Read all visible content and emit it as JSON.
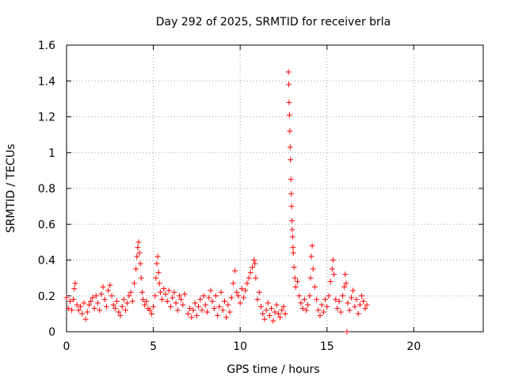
{
  "chart_data": {
    "type": "scatter",
    "title": "Day 292 of 2025, SRMTID for receiver brla",
    "xlabel": "GPS time / hours",
    "ylabel": "SRMTID / TECUs",
    "xlim": [
      0,
      24
    ],
    "ylim": [
      0,
      1.6
    ],
    "xticks": [
      0,
      5,
      10,
      15,
      20
    ],
    "xtick_labels": [
      "0",
      "5",
      "10",
      "15",
      "20"
    ],
    "yticks": [
      0,
      0.2,
      0.4,
      0.6,
      0.8,
      1.0,
      1.2,
      1.4,
      1.6
    ],
    "ytick_labels": [
      "0",
      "0.2",
      "0.4",
      "0.6",
      "0.8",
      "1",
      "1.2",
      "1.4",
      "1.6"
    ],
    "grid": true,
    "marker": "+",
    "series": [
      {
        "name": "SRMTID",
        "color": "#ff0000",
        "points": [
          [
            0.0,
            0.19
          ],
          [
            0.1,
            0.13
          ],
          [
            0.2,
            0.17
          ],
          [
            0.3,
            0.12
          ],
          [
            0.4,
            0.18
          ],
          [
            0.45,
            0.24
          ],
          [
            0.5,
            0.27
          ],
          [
            0.6,
            0.15
          ],
          [
            0.7,
            0.12
          ],
          [
            0.8,
            0.14
          ],
          [
            0.9,
            0.1
          ],
          [
            1.0,
            0.16
          ],
          [
            1.1,
            0.07
          ],
          [
            1.2,
            0.11
          ],
          [
            1.3,
            0.15
          ],
          [
            1.4,
            0.17
          ],
          [
            1.5,
            0.19
          ],
          [
            1.6,
            0.13
          ],
          [
            1.7,
            0.2
          ],
          [
            1.8,
            0.16
          ],
          [
            1.9,
            0.12
          ],
          [
            2.0,
            0.21
          ],
          [
            2.1,
            0.25
          ],
          [
            2.2,
            0.18
          ],
          [
            2.3,
            0.14
          ],
          [
            2.4,
            0.23
          ],
          [
            2.5,
            0.26
          ],
          [
            2.6,
            0.2
          ],
          [
            2.7,
            0.15
          ],
          [
            2.8,
            0.13
          ],
          [
            2.9,
            0.17
          ],
          [
            3.0,
            0.11
          ],
          [
            3.1,
            0.09
          ],
          [
            3.2,
            0.14
          ],
          [
            3.3,
            0.18
          ],
          [
            3.4,
            0.12
          ],
          [
            3.5,
            0.16
          ],
          [
            3.6,
            0.2
          ],
          [
            3.7,
            0.22
          ],
          [
            3.8,
            0.17
          ],
          [
            3.9,
            0.27
          ],
          [
            4.0,
            0.35
          ],
          [
            4.05,
            0.42
          ],
          [
            4.1,
            0.47
          ],
          [
            4.15,
            0.5
          ],
          [
            4.2,
            0.44
          ],
          [
            4.25,
            0.38
          ],
          [
            4.3,
            0.3
          ],
          [
            4.35,
            0.22
          ],
          [
            4.4,
            0.18
          ],
          [
            4.5,
            0.15
          ],
          [
            4.6,
            0.17
          ],
          [
            4.7,
            0.13
          ],
          [
            4.8,
            0.12
          ],
          [
            4.9,
            0.1
          ],
          [
            5.0,
            0.14
          ],
          [
            5.1,
            0.2
          ],
          [
            5.15,
            0.3
          ],
          [
            5.2,
            0.38
          ],
          [
            5.25,
            0.42
          ],
          [
            5.3,
            0.33
          ],
          [
            5.35,
            0.27
          ],
          [
            5.4,
            0.22
          ],
          [
            5.5,
            0.18
          ],
          [
            5.6,
            0.24
          ],
          [
            5.7,
            0.21
          ],
          [
            5.8,
            0.17
          ],
          [
            5.9,
            0.23
          ],
          [
            6.0,
            0.14
          ],
          [
            6.1,
            0.19
          ],
          [
            6.2,
            0.22
          ],
          [
            6.3,
            0.16
          ],
          [
            6.4,
            0.12
          ],
          [
            6.5,
            0.2
          ],
          [
            6.6,
            0.18
          ],
          [
            6.7,
            0.15
          ],
          [
            6.8,
            0.21
          ],
          [
            7.0,
            0.1
          ],
          [
            7.1,
            0.13
          ],
          [
            7.2,
            0.08
          ],
          [
            7.3,
            0.12
          ],
          [
            7.4,
            0.16
          ],
          [
            7.5,
            0.09
          ],
          [
            7.6,
            0.14
          ],
          [
            7.7,
            0.18
          ],
          [
            7.8,
            0.12
          ],
          [
            7.9,
            0.2
          ],
          [
            8.0,
            0.15
          ],
          [
            8.1,
            0.11
          ],
          [
            8.2,
            0.19
          ],
          [
            8.3,
            0.23
          ],
          [
            8.4,
            0.17
          ],
          [
            8.5,
            0.13
          ],
          [
            8.6,
            0.2
          ],
          [
            8.7,
            0.09
          ],
          [
            8.8,
            0.14
          ],
          [
            8.9,
            0.22
          ],
          [
            9.0,
            0.12
          ],
          [
            9.1,
            0.17
          ],
          [
            9.2,
            0.08
          ],
          [
            9.3,
            0.15
          ],
          [
            9.4,
            0.11
          ],
          [
            9.5,
            0.19
          ],
          [
            9.6,
            0.27
          ],
          [
            9.7,
            0.34
          ],
          [
            9.8,
            0.22
          ],
          [
            9.9,
            0.2
          ],
          [
            10.0,
            0.16
          ],
          [
            10.1,
            0.24
          ],
          [
            10.2,
            0.19
          ],
          [
            10.3,
            0.23
          ],
          [
            10.4,
            0.27
          ],
          [
            10.5,
            0.3
          ],
          [
            10.6,
            0.33
          ],
          [
            10.7,
            0.36
          ],
          [
            10.8,
            0.4
          ],
          [
            10.85,
            0.38
          ],
          [
            10.9,
            0.3
          ],
          [
            11.0,
            0.18
          ],
          [
            11.1,
            0.22
          ],
          [
            11.2,
            0.14
          ],
          [
            11.3,
            0.1
          ],
          [
            11.4,
            0.07
          ],
          [
            11.5,
            0.12
          ],
          [
            11.6,
            0.16
          ],
          [
            11.7,
            0.09
          ],
          [
            11.8,
            0.13
          ],
          [
            11.9,
            0.06
          ],
          [
            12.0,
            0.11
          ],
          [
            12.1,
            0.15
          ],
          [
            12.2,
            0.1
          ],
          [
            12.3,
            0.08
          ],
          [
            12.4,
            0.12
          ],
          [
            12.5,
            0.14
          ],
          [
            12.6,
            0.1
          ],
          [
            12.78,
            1.45
          ],
          [
            12.8,
            1.38
          ],
          [
            12.82,
            1.28
          ],
          [
            12.84,
            1.21
          ],
          [
            12.86,
            1.12
          ],
          [
            12.88,
            1.03
          ],
          [
            12.9,
            0.96
          ],
          [
            12.92,
            0.85
          ],
          [
            12.94,
            0.77
          ],
          [
            12.96,
            0.7
          ],
          [
            12.98,
            0.62
          ],
          [
            13.0,
            0.57
          ],
          [
            13.02,
            0.53
          ],
          [
            13.04,
            0.47
          ],
          [
            13.06,
            0.44
          ],
          [
            13.1,
            0.36
          ],
          [
            13.15,
            0.3
          ],
          [
            13.2,
            0.25
          ],
          [
            13.3,
            0.28
          ],
          [
            13.4,
            0.2
          ],
          [
            13.5,
            0.16
          ],
          [
            13.6,
            0.13
          ],
          [
            13.7,
            0.18
          ],
          [
            13.8,
            0.12
          ],
          [
            13.9,
            0.15
          ],
          [
            14.0,
            0.2
          ],
          [
            14.05,
            0.3
          ],
          [
            14.1,
            0.42
          ],
          [
            14.15,
            0.48
          ],
          [
            14.2,
            0.35
          ],
          [
            14.3,
            0.25
          ],
          [
            14.4,
            0.18
          ],
          [
            14.5,
            0.12
          ],
          [
            14.6,
            0.09
          ],
          [
            14.7,
            0.15
          ],
          [
            14.8,
            0.11
          ],
          [
            14.9,
            0.18
          ],
          [
            15.0,
            0.14
          ],
          [
            15.1,
            0.2
          ],
          [
            15.2,
            0.28
          ],
          [
            15.3,
            0.35
          ],
          [
            15.35,
            0.4
          ],
          [
            15.4,
            0.32
          ],
          [
            15.5,
            0.18
          ],
          [
            15.6,
            0.13
          ],
          [
            15.7,
            0.17
          ],
          [
            15.8,
            0.11
          ],
          [
            15.9,
            0.2
          ],
          [
            16.0,
            0.25
          ],
          [
            16.05,
            0.32
          ],
          [
            16.1,
            0.27
          ],
          [
            16.15,
            0.0
          ],
          [
            16.2,
            0.16
          ],
          [
            16.3,
            0.12
          ],
          [
            16.4,
            0.19
          ],
          [
            16.5,
            0.23
          ],
          [
            16.6,
            0.14
          ],
          [
            16.7,
            0.18
          ],
          [
            16.8,
            0.1
          ],
          [
            16.9,
            0.15
          ],
          [
            17.0,
            0.2
          ],
          [
            17.1,
            0.17
          ],
          [
            17.2,
            0.13
          ],
          [
            17.3,
            0.15
          ]
        ]
      }
    ]
  }
}
